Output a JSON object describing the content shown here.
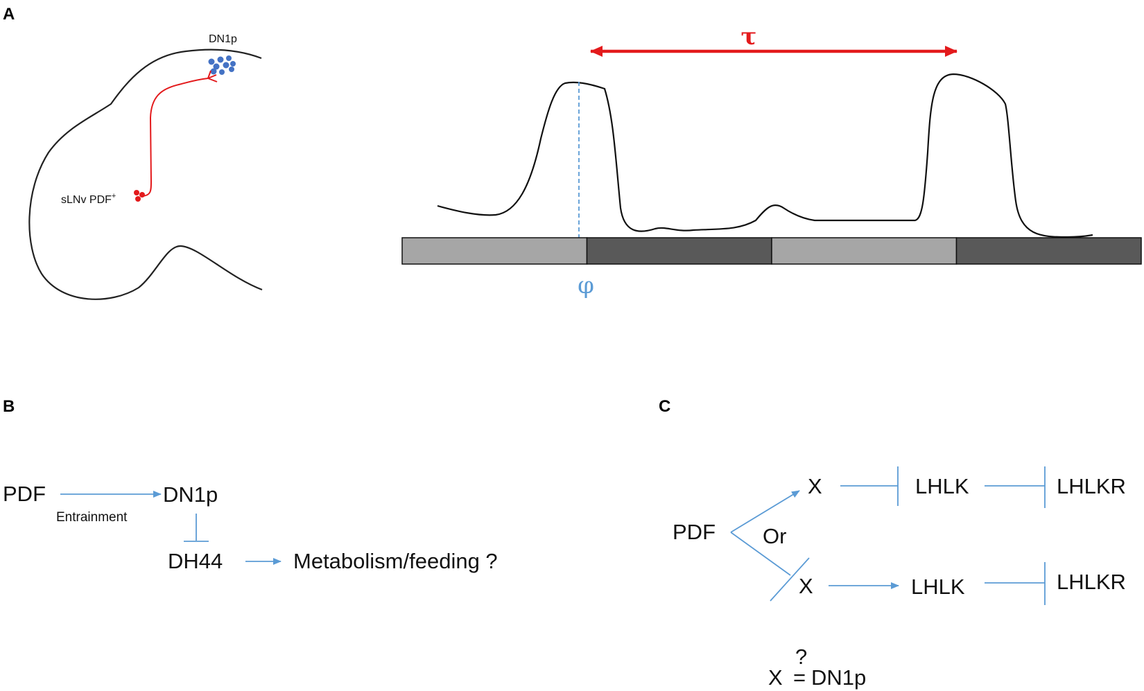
{
  "colors": {
    "outline": "#222222",
    "pdf_neuron": "#e31a1c",
    "dn1p_cluster": "#4472c4",
    "pathway_arrow": "#5b9bd5",
    "tau_arrow": "#e31a1c",
    "phase_marker": "#5b9bd5",
    "light_bar": "#a6a6a6",
    "dark_bar": "#595959"
  },
  "panel_a": {
    "label": "A",
    "brain": {
      "dn1p_label": "DN1p",
      "slnv_label": "sLNv PDF",
      "slnv_superscript": "+"
    },
    "rhythm": {
      "tau_symbol": "τ",
      "phase_symbol": "φ",
      "bars": [
        "light",
        "dark",
        "light",
        "dark"
      ]
    }
  },
  "panel_b": {
    "label": "B",
    "pdf": "PDF",
    "entrainment": "Entrainment",
    "dn1p": "DN1p",
    "dh44": "DH44",
    "outcome": "Metabolism/feeding ?"
  },
  "panel_c": {
    "label": "C",
    "pdf": "PDF",
    "or": "Or",
    "x_top": "X",
    "lhlk_top": "LHLK",
    "lhlkr_top": "LHLKR",
    "x_bottom": "X",
    "lhlk_bottom": "LHLK",
    "lhlkr_bottom": "LHLKR",
    "question_x": "X",
    "question_mark": "?",
    "question_eq": "=",
    "question_dn1p": "DN1p"
  }
}
